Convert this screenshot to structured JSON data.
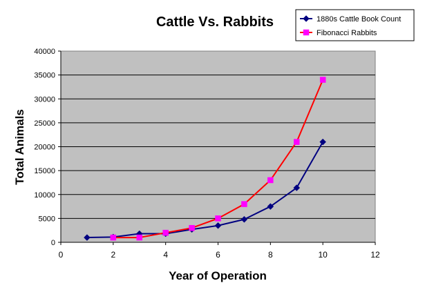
{
  "chart_data": {
    "type": "line",
    "title": "Cattle Vs. Rabbits",
    "xlabel": "Year of Operation",
    "ylabel": "Total Animals",
    "xlim": [
      0,
      12
    ],
    "ylim": [
      0,
      40000
    ],
    "x_ticks": [
      0,
      2,
      4,
      6,
      8,
      10,
      12
    ],
    "y_ticks": [
      0,
      5000,
      10000,
      15000,
      20000,
      25000,
      30000,
      35000,
      40000
    ],
    "grid": "horizontal",
    "plot_background": "#C0C0C0",
    "legend_position": "top-right",
    "series": [
      {
        "name": "1880s Cattle Book Count",
        "color": "#000080",
        "marker": "diamond",
        "x": [
          1,
          2,
          3,
          4,
          5,
          6,
          7,
          8,
          9,
          10
        ],
        "y": [
          1000,
          1100,
          1800,
          1800,
          2700,
          3500,
          4800,
          7500,
          11400,
          21000
        ]
      },
      {
        "name": "Fibonacci Rabbits",
        "color": "#FF0000",
        "marker_color": "#FF00FF",
        "marker": "square",
        "x": [
          2,
          3,
          4,
          5,
          6,
          7,
          8,
          9,
          10
        ],
        "y": [
          1000,
          1000,
          2000,
          3000,
          5000,
          8000,
          13000,
          21000,
          34000
        ]
      }
    ]
  }
}
